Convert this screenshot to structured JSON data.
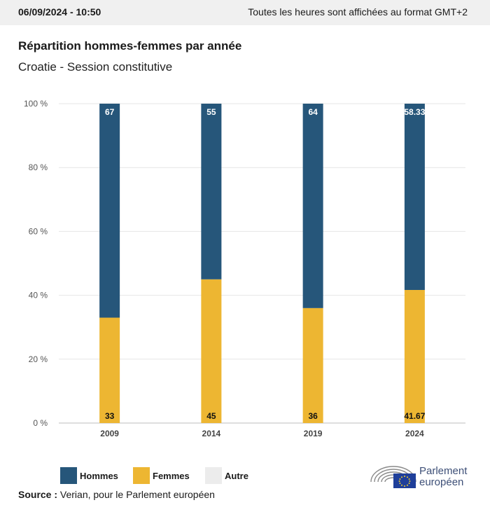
{
  "header": {
    "date": "06/09/2024 - 10:50",
    "timezone_note": "Toutes les heures sont affichées au format GMT+2"
  },
  "title": "Répartition hommes-femmes par année",
  "subtitle": "Croatie - Session constitutive",
  "colors": {
    "hommes": "#26567a",
    "femmes": "#edb632",
    "autre": "#ececec",
    "grid": "#e6e6e6"
  },
  "chart_data": {
    "type": "bar",
    "stacked": true,
    "categories": [
      "2009",
      "2014",
      "2019",
      "2024"
    ],
    "series": [
      {
        "name": "Femmes",
        "values": [
          33,
          45,
          36,
          41.67
        ],
        "labels": [
          "33",
          "45",
          "36",
          "41.67"
        ]
      },
      {
        "name": "Hommes",
        "values": [
          67,
          55,
          64,
          58.33
        ],
        "labels": [
          "67",
          "55",
          "64",
          "58.33"
        ]
      },
      {
        "name": "Autre",
        "values": [
          0,
          0,
          0,
          0
        ]
      }
    ],
    "y_ticks": [
      "0 %",
      "20 %",
      "40 %",
      "60 %",
      "80 %",
      "100 %"
    ],
    "ylim": [
      0,
      100
    ],
    "grid": true,
    "legend_position": "bottom-left"
  },
  "legend": {
    "hommes": "Hommes",
    "femmes": "Femmes",
    "autre": "Autre"
  },
  "source": {
    "label": "Source :",
    "text": "Verian, pour le Parlement européen"
  },
  "logo": {
    "line1": "Parlement",
    "line2": "européen"
  }
}
